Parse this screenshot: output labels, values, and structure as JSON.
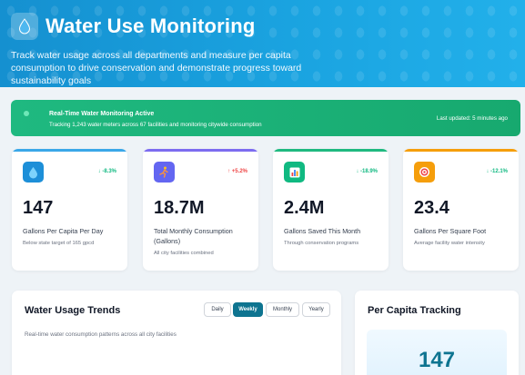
{
  "header": {
    "title": "Water Use Monitoring",
    "subtitle": "Track water usage across all departments and measure per capita consumption to drive conservation and demonstrate progress toward sustainability goals",
    "logo_icon": "water-drop-icon"
  },
  "banner": {
    "title": "Real-Time Water Monitoring Active",
    "subtitle": "Tracking 1,243 water meters across 67 facilities and monitoring citywide consumption",
    "updated": "Last updated: 5 minutes ago"
  },
  "metrics": [
    {
      "icon": "water-drop-icon",
      "change": "↓ -8.3%",
      "value": "147",
      "label": "Gallons Per Capita Per Day",
      "note": "Below state target of 165 gpcd",
      "accent": "#3aa7e8",
      "change_color": "#10b981"
    },
    {
      "icon": "runner-icon",
      "change": "↑ +5.2%",
      "value": "18.7M",
      "label": "Total Monthly Consumption (Gallons)",
      "note": "All city facilities combined",
      "accent": "#7c6cf0",
      "change_color": "#ef4444"
    },
    {
      "icon": "bar-chart-icon",
      "change": "↓ -18.9%",
      "value": "2.4M",
      "label": "Gallons Saved This Month",
      "note": "Through conservation programs",
      "accent": "#1fb980",
      "change_color": "#10b981"
    },
    {
      "icon": "target-icon",
      "change": "↓ -12.1%",
      "value": "23.4",
      "label": "Gallons Per Square Foot",
      "note": "Average facility water intensity",
      "accent": "#f59e0b",
      "change_color": "#10b981"
    }
  ],
  "trends": {
    "title": "Water Usage Trends",
    "subtitle": "Real-time water consumption patterns across all city facilities",
    "tabs": [
      "Daily",
      "Weekly",
      "Monthly",
      "Yearly"
    ],
    "active_tab": "Weekly"
  },
  "per_capita": {
    "title": "Per Capita Tracking",
    "value": "147"
  }
}
